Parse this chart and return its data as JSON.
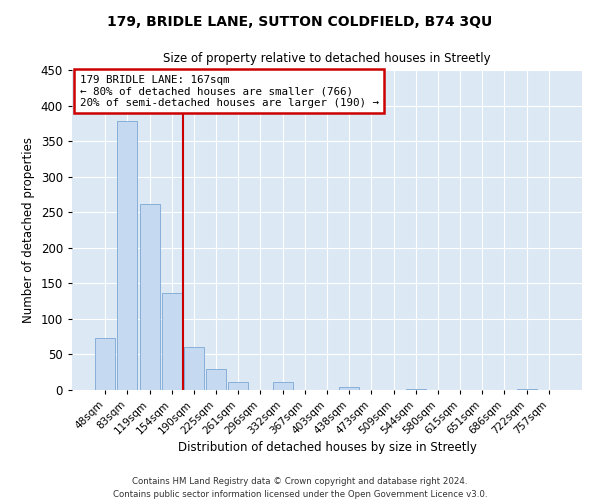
{
  "title": "179, BRIDLE LANE, SUTTON COLDFIELD, B74 3QU",
  "subtitle": "Size of property relative to detached houses in Streetly",
  "xlabel": "Distribution of detached houses by size in Streetly",
  "ylabel": "Number of detached properties",
  "bar_labels": [
    "48sqm",
    "83sqm",
    "119sqm",
    "154sqm",
    "190sqm",
    "225sqm",
    "261sqm",
    "296sqm",
    "332sqm",
    "367sqm",
    "403sqm",
    "438sqm",
    "473sqm",
    "509sqm",
    "544sqm",
    "580sqm",
    "615sqm",
    "651sqm",
    "686sqm",
    "722sqm",
    "757sqm"
  ],
  "bar_values": [
    73,
    378,
    261,
    137,
    60,
    30,
    11,
    0,
    11,
    0,
    0,
    4,
    0,
    0,
    1,
    0,
    0,
    0,
    0,
    1,
    0
  ],
  "bar_color": "#c5d9f0",
  "bar_edge_color": "#7ba7d4",
  "background_color": "#dce9f5",
  "grid_color": "#ffffff",
  "vline_color": "#cc0000",
  "annotation_title": "179 BRIDLE LANE: 167sqm",
  "annotation_line1": "← 80% of detached houses are smaller (766)",
  "annotation_line2": "20% of semi-detached houses are larger (190) →",
  "annotation_box_color": "#cc0000",
  "ylim": [
    0,
    450
  ],
  "yticks": [
    0,
    50,
    100,
    150,
    200,
    250,
    300,
    350,
    400,
    450
  ],
  "footer1": "Contains HM Land Registry data © Crown copyright and database right 2024.",
  "footer2": "Contains public sector information licensed under the Open Government Licence v3.0."
}
